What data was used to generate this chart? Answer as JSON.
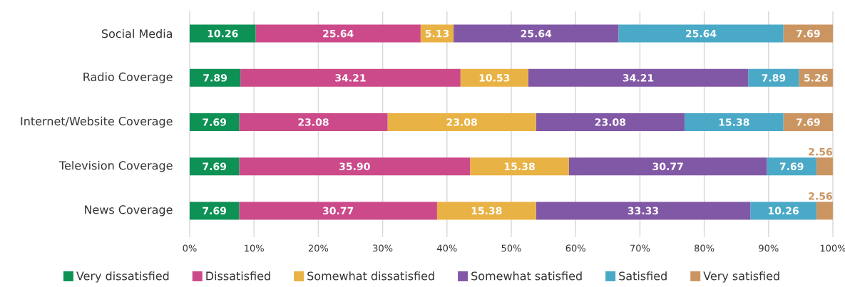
{
  "chart_data": {
    "type": "bar",
    "orientation": "horizontal",
    "stacked": true,
    "categories": [
      "Social Media",
      "Radio Coverage",
      "Internet/Website Coverage",
      "Television Coverage",
      "News Coverage"
    ],
    "series": [
      {
        "name": "Very dissatisfied",
        "color": "#0e9155",
        "values": [
          10.26,
          7.89,
          7.69,
          7.69,
          7.69
        ],
        "value_labels": [
          "10.26",
          "7.89",
          "7.69",
          "7.69",
          "7.69"
        ]
      },
      {
        "name": "Dissatisfied",
        "color": "#cc4a8a",
        "values": [
          25.64,
          34.21,
          23.08,
          35.9,
          30.77
        ],
        "value_labels": [
          "25.64",
          "34.21",
          "23.08",
          "35.90",
          "30.77"
        ]
      },
      {
        "name": "Somewhat dissatisfied",
        "color": "#e9b244",
        "values": [
          5.13,
          10.53,
          23.08,
          15.38,
          15.38
        ],
        "value_labels": [
          "5.13",
          "10.53",
          "23.08",
          "15.38",
          "15.38"
        ]
      },
      {
        "name": "Somewhat satisfied",
        "color": "#8158a5",
        "values": [
          25.64,
          34.21,
          23.08,
          30.77,
          33.33
        ],
        "value_labels": [
          "25.64",
          "34.21",
          "23.08",
          "30.77",
          "33.33"
        ]
      },
      {
        "name": "Satisfied",
        "color": "#4aa9c7",
        "values": [
          25.64,
          7.89,
          15.38,
          7.69,
          10.26
        ],
        "value_labels": [
          "25.64",
          "7.89",
          "15.38",
          "7.69",
          "10.26"
        ]
      },
      {
        "name": "Very satisfied",
        "color": "#cb9562",
        "values": [
          7.69,
          5.26,
          7.69,
          2.56,
          2.56
        ],
        "value_labels": [
          "7.69",
          "5.26",
          "7.69",
          "2.56",
          "2.56"
        ]
      }
    ],
    "xlim": [
      0,
      100
    ],
    "xticks": [
      {
        "value": 0,
        "label": "0%"
      },
      {
        "value": 10,
        "label": "10%"
      },
      {
        "value": 20,
        "label": "20%"
      },
      {
        "value": 30,
        "label": "30%"
      },
      {
        "value": 40,
        "label": "40%"
      },
      {
        "value": 50,
        "label": "50%"
      },
      {
        "value": 60,
        "label": "60%"
      },
      {
        "value": 70,
        "label": "70%"
      },
      {
        "value": 80,
        "label": "80%"
      },
      {
        "value": 90,
        "label": "90%"
      },
      {
        "value": 100,
        "label": "100%"
      }
    ],
    "grid": "x",
    "legend": "bottom"
  }
}
